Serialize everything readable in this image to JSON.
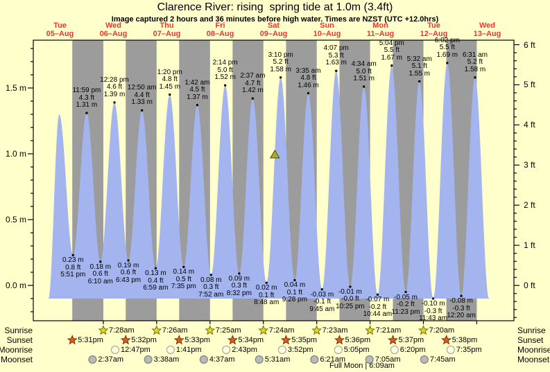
{
  "title": "Clarence River: rising  spring tide at 1.0m (3.4ft)",
  "subtitle": "Image captured 2 hours and 36 minutes before high water. Times are NZST (UTC +12.0hrs)",
  "colors": {
    "page_background": "#ffffcc",
    "day_band": "#ffffcc",
    "night_band": "#9c9c9c",
    "tide_fill": "#a3b4ef",
    "day_label_red": "#ee3333",
    "axis_black": "#000000",
    "marker_fill": "#b0aa2e",
    "marker_stroke": "#4a4a10",
    "sunrise_star": "#e2d824",
    "sunrise_star_stroke": "#6f6f00",
    "sunset_star": "#dd5d1d",
    "sunset_star_stroke": "#7a2d05",
    "moonrise_circle": "#ffffe0",
    "moonrise_circle_stroke": "#9a9a9a",
    "moonset_circle": "#b9b9b9",
    "moonset_circle_stroke": "#777777"
  },
  "days": [
    {
      "weekday": "Tue",
      "date": "05–Aug"
    },
    {
      "weekday": "Wed",
      "date": "06–Aug"
    },
    {
      "weekday": "Thu",
      "date": "07–Aug"
    },
    {
      "weekday": "Fri",
      "date": "08–Aug"
    },
    {
      "weekday": "Sat",
      "date": "09–Aug"
    },
    {
      "weekday": "Sun",
      "date": "10–Aug"
    },
    {
      "weekday": "Mon",
      "date": "11–Aug"
    },
    {
      "weekday": "Tue",
      "date": "12–Aug"
    },
    {
      "weekday": "Wed",
      "date": "13–Aug"
    }
  ],
  "chart_data": {
    "type": "area",
    "title": "Clarence River tide heights, 05–13 Aug, NZST",
    "x_axis": "time, hours since 05-Aug 00:00 (9 days shown)",
    "x_range_hours": [
      0,
      216
    ],
    "y_axis_left": {
      "labels": [
        "0.0 m",
        "0.5 m",
        "1.0 m",
        "1.5 m"
      ],
      "values_m": [
        0,
        0.5,
        1.0,
        1.5
      ],
      "minor_step_m": 0.1
    },
    "y_axis_right": {
      "labels": [
        "0 ft",
        "1 ft",
        "2 ft",
        "3 ft",
        "4 ft",
        "5 ft",
        "6 ft"
      ],
      "values_ft": [
        0,
        1,
        2,
        3,
        4,
        5,
        6
      ],
      "minor_step_ft": 0.2
    },
    "grid": false,
    "baseline_m": -0.1,
    "curve_start_h": 6.8,
    "curve_end_h": 204.8,
    "night_bands_hours": [
      [
        17.52,
        31.47
      ],
      [
        41.53,
        55.43
      ],
      [
        65.55,
        79.42
      ],
      [
        89.57,
        103.4
      ],
      [
        113.58,
        127.38
      ],
      [
        137.6,
        151.35
      ],
      [
        161.62,
        175.33
      ],
      [
        185.63,
        199.3
      ]
    ],
    "marker": {
      "hours": 108.57,
      "height_m": 1.0,
      "meaning": "current tide position, rising"
    },
    "events": [
      {
        "h": 11.67,
        "m": 1.3,
        "type": "high",
        "lines": []
      },
      {
        "h": 17.85,
        "m": 0.23,
        "type": "low",
        "lines": [
          "0.23 m",
          "0.8 ft",
          "5:51 pm"
        ]
      },
      {
        "h": 23.98,
        "m": 1.31,
        "type": "high",
        "lines": [
          "11:59 pm",
          "4.3 ft",
          "1.31 m"
        ]
      },
      {
        "h": 30.17,
        "m": 0.18,
        "type": "low",
        "lines": [
          "0.18 m",
          "0.6 ft",
          "6:10 am"
        ]
      },
      {
        "h": 36.47,
        "m": 1.39,
        "type": "high",
        "lines": [
          "12:28 pm",
          "4.6 ft",
          "1.39 m"
        ]
      },
      {
        "h": 42.72,
        "m": 0.19,
        "type": "low",
        "lines": [
          "0.19 m",
          "0.6 ft",
          "6:43 pm"
        ]
      },
      {
        "h": 48.83,
        "m": 1.33,
        "type": "high",
        "lines": [
          "12:50 am",
          "4.4 ft",
          "1.33 m"
        ]
      },
      {
        "h": 54.98,
        "m": 0.13,
        "type": "low",
        "lines": [
          "0.13 m",
          "0.4 ft",
          "6:59 am"
        ]
      },
      {
        "h": 61.33,
        "m": 1.45,
        "type": "high",
        "lines": [
          "1:20 pm",
          "4.8 ft",
          "1.45 m"
        ]
      },
      {
        "h": 67.58,
        "m": 0.14,
        "type": "low",
        "lines": [
          "0.14 m",
          "0.5 ft",
          "7:35 pm"
        ]
      },
      {
        "h": 73.7,
        "m": 1.37,
        "type": "high",
        "lines": [
          "1:42 am",
          "4.5 ft",
          "1.37 m"
        ]
      },
      {
        "h": 79.87,
        "m": 0.08,
        "type": "low",
        "lines": [
          "0.08 m",
          "0.3 ft",
          "7:52 am"
        ]
      },
      {
        "h": 86.23,
        "m": 1.52,
        "type": "high",
        "lines": [
          "2:14 pm",
          "5.0 ft",
          "1.52 m"
        ]
      },
      {
        "h": 92.53,
        "m": 0.09,
        "type": "low",
        "lines": [
          "0.09 m",
          "0.3 ft",
          "8:32 pm"
        ]
      },
      {
        "h": 98.62,
        "m": 1.42,
        "type": "high",
        "lines": [
          "2:37 am",
          "4.7 ft",
          "1.42 m"
        ]
      },
      {
        "h": 104.8,
        "m": 0.02,
        "type": "low",
        "lines": [
          "0.02 m",
          "0.1 ft",
          "8:48 am"
        ]
      },
      {
        "h": 111.17,
        "m": 1.58,
        "type": "high",
        "lines": [
          "3:10 pm",
          "5.2 ft",
          "1.58 m"
        ]
      },
      {
        "h": 117.47,
        "m": 0.04,
        "type": "low",
        "lines": [
          "0.04 m",
          "0.1 ft",
          "9:28 pm"
        ]
      },
      {
        "h": 123.58,
        "m": 1.46,
        "type": "high",
        "lines": [
          "3:35 am",
          "4.8 ft",
          "1.46 m"
        ]
      },
      {
        "h": 129.75,
        "m": -0.03,
        "type": "low",
        "lines": [
          "-0.03 m",
          "-0.1 ft",
          "9:45 am"
        ]
      },
      {
        "h": 136.12,
        "m": 1.63,
        "type": "high",
        "lines": [
          "4:07 pm",
          "5.3 ft",
          "1.63 m"
        ]
      },
      {
        "h": 142.42,
        "m": -0.01,
        "type": "low",
        "lines": [
          "-0.01 m",
          "-0.0 ft",
          "10:25 pm"
        ]
      },
      {
        "h": 148.57,
        "m": 1.51,
        "type": "high",
        "lines": [
          "4:34 am",
          "5.0 ft",
          "1.51 m"
        ]
      },
      {
        "h": 154.73,
        "m": -0.07,
        "type": "low",
        "lines": [
          "-0.07 m",
          "-0.2 ft",
          "10:44 am"
        ]
      },
      {
        "h": 161.07,
        "m": 1.67,
        "type": "high",
        "lines": [
          "5:04 pm",
          "5.5 ft",
          "1.67 m"
        ]
      },
      {
        "h": 167.38,
        "m": -0.05,
        "type": "low",
        "lines": [
          "-0.05 m",
          "-0.2 ft",
          "11:23 pm"
        ]
      },
      {
        "h": 173.53,
        "m": 1.55,
        "type": "high",
        "lines": [
          "5:32 am",
          "5.1 ft",
          "1.55 m"
        ]
      },
      {
        "h": 179.72,
        "m": -0.1,
        "type": "low",
        "lines": [
          "-0.10 m",
          "-0.3 ft",
          "11:43 am"
        ]
      },
      {
        "h": 186.03,
        "m": 1.69,
        "type": "high",
        "lines": [
          "6:02 pm",
          "5.5 ft",
          "1.69 m"
        ]
      },
      {
        "h": 192.33,
        "m": -0.08,
        "type": "low",
        "lines": [
          "-0.08 m",
          "-0.3 ft",
          "12:20 am"
        ]
      },
      {
        "h": 198.52,
        "m": 1.58,
        "type": "high",
        "lines": [
          "6:31 am",
          "5.2 ft",
          "1.58 m"
        ]
      }
    ]
  },
  "sun_moon": {
    "rows": [
      {
        "label": "Sunrise",
        "icon": "sunrise-star",
        "entries": [
          {
            "time": "7:28am",
            "h": 31.47
          },
          {
            "time": "7:26am",
            "h": 55.43
          },
          {
            "time": "7:25am",
            "h": 79.42
          },
          {
            "time": "7:24am",
            "h": 103.4
          },
          {
            "time": "7:23am",
            "h": 127.38
          },
          {
            "time": "7:21am",
            "h": 151.35
          },
          {
            "time": "7:20am",
            "h": 175.33
          }
        ]
      },
      {
        "label": "Sunset",
        "icon": "sunset-star",
        "entries": [
          {
            "time": "5:31pm",
            "h": 17.52
          },
          {
            "time": "5:32pm",
            "h": 41.53
          },
          {
            "time": "5:33pm",
            "h": 65.55
          },
          {
            "time": "5:34pm",
            "h": 89.57
          },
          {
            "time": "5:35pm",
            "h": 113.58
          },
          {
            "time": "5:36pm",
            "h": 137.6
          },
          {
            "time": "5:37pm",
            "h": 161.62
          },
          {
            "time": "5:38pm",
            "h": 185.63
          }
        ]
      },
      {
        "label": "Moonrise",
        "icon": "moonrise-circle",
        "entries": [
          {
            "time": "12:47pm",
            "h": 36.78
          },
          {
            "time": "1:41pm",
            "h": 61.68
          },
          {
            "time": "2:43pm",
            "h": 86.72
          },
          {
            "time": "3:52pm",
            "h": 111.87
          },
          {
            "time": "5:05pm",
            "h": 137.08
          },
          {
            "time": "6:20pm",
            "h": 162.33
          },
          {
            "time": "7:35pm",
            "h": 187.58
          }
        ]
      },
      {
        "label": "Moonset",
        "icon": "moonset-circle",
        "entries": [
          {
            "time": "2:37am",
            "h": 26.62
          },
          {
            "time": "3:38am",
            "h": 51.63
          },
          {
            "time": "4:37am",
            "h": 76.62
          },
          {
            "time": "5:31am",
            "h": 101.52
          },
          {
            "time": "6:21am",
            "h": 126.35
          },
          {
            "time": "7:05am",
            "h": 151.08
          },
          {
            "time": "7:45am",
            "h": 175.75
          }
        ]
      }
    ],
    "full_moon": "Full Moon | 6:09am"
  }
}
